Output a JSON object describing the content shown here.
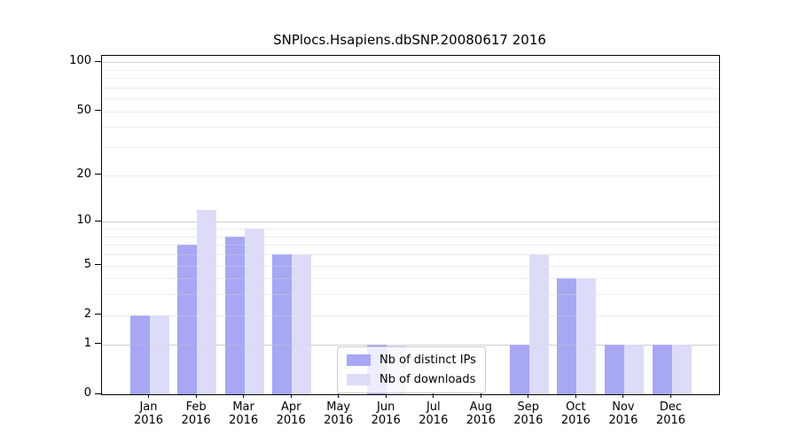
{
  "chart_data": {
    "type": "bar",
    "title": "SNPlocs.Hsapiens.dbSNP.20080617 2016",
    "xlabel": "",
    "ylabel": "",
    "categories": [
      {
        "month": "Jan",
        "year": "2016"
      },
      {
        "month": "Feb",
        "year": "2016"
      },
      {
        "month": "Mar",
        "year": "2016"
      },
      {
        "month": "Apr",
        "year": "2016"
      },
      {
        "month": "May",
        "year": "2016"
      },
      {
        "month": "Jun",
        "year": "2016"
      },
      {
        "month": "Jul",
        "year": "2016"
      },
      {
        "month": "Aug",
        "year": "2016"
      },
      {
        "month": "Sep",
        "year": "2016"
      },
      {
        "month": "Oct",
        "year": "2016"
      },
      {
        "month": "Nov",
        "year": "2016"
      },
      {
        "month": "Dec",
        "year": "2016"
      }
    ],
    "series": [
      {
        "name": "Nb of distinct IPs",
        "color": "#a7a7f3",
        "values": [
          2,
          7,
          8,
          6,
          0,
          1,
          0,
          0,
          1,
          4,
          1,
          1
        ]
      },
      {
        "name": "Nb of downloads",
        "color": "#dcdcf8",
        "values": [
          2,
          12,
          9,
          6,
          0,
          1,
          0,
          0,
          6,
          4,
          1,
          1
        ]
      }
    ],
    "yscale": "log1p",
    "yticks": [
      0,
      1,
      2,
      5,
      10,
      20,
      50,
      100
    ],
    "ylim": [
      0,
      109
    ],
    "grid": {
      "minor": [
        2,
        3,
        4,
        5,
        6,
        7,
        8,
        9,
        20,
        30,
        40,
        50,
        60,
        70,
        80,
        90
      ],
      "major": [
        1,
        10,
        100
      ]
    },
    "legend": {
      "position": "lower-center"
    },
    "colors": {
      "axis": "#000000",
      "grid_minor": "#ededed",
      "grid_major": "#cfcfcf",
      "legend_border": "#cccccc"
    }
  }
}
